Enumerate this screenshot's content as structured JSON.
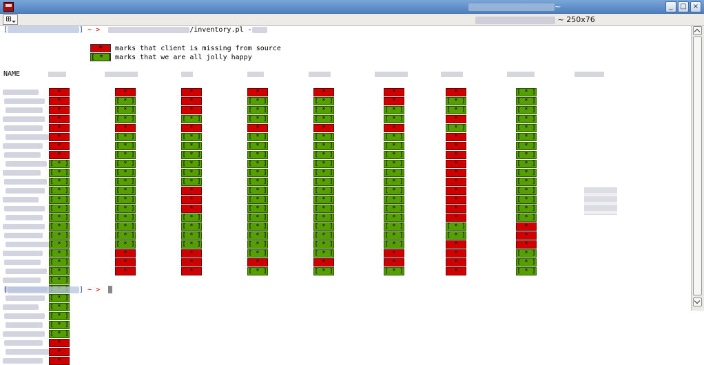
{
  "window": {
    "title_suffix": "~"
  },
  "tab": {
    "title_suffix": "~ 250x76"
  },
  "prompt": {
    "tilde": "~",
    "arrow": ">",
    "script": "/inventory.pl",
    "dash": "-"
  },
  "legend": {
    "missing": {
      "marker": "*",
      "text": "marks that client is missing from source",
      "color": "#d10000"
    },
    "ok": {
      "marker": "[ * ]",
      "text": "marks that we are all jolly happy",
      "color": "#55a000"
    }
  },
  "table": {
    "first_header": "NAME",
    "columns": [
      "m m m m m m m m o o o o o o o o o o o o o o o o o o o o m m m",
      "m o o o m o o o o o o o o o o o o o m m m",
      "m m m o m o o o o o o m m m o o o o m m m",
      "m o o o m o o o o o o o o o o o o o o m o",
      "m o o o m o o o o o o o o o o o o o o m o",
      "m m o o m o o o o o o o o o o o o o m m o",
      "m o o m o m m m m m m m m m m o o m m m m",
      "o o o o o o o o o o o o o o o m m m o o o"
    ],
    "cell_mark": "*",
    "cell_open": "[",
    "cell_close": "]"
  }
}
